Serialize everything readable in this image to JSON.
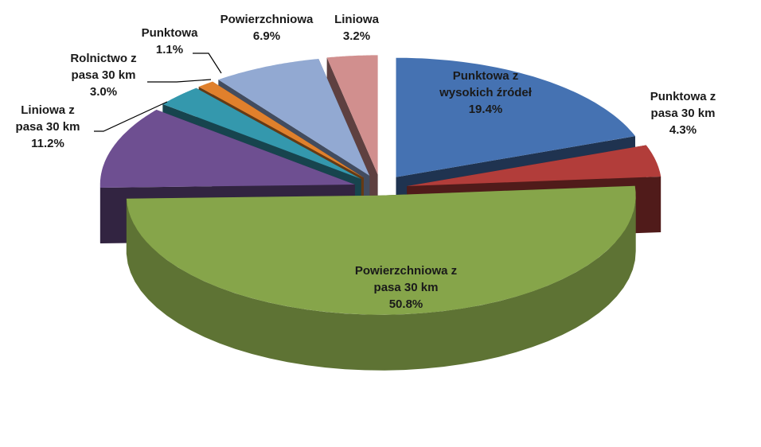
{
  "chart_data": {
    "type": "pie",
    "variant": "3d-exploded",
    "title": "",
    "slices": [
      {
        "name": "Punktowa z wysokich źródeł",
        "label_lines": [
          "Punktowa z",
          "wysokich źródeł"
        ],
        "value": 19.4,
        "value_label": "19.4%",
        "color": "#4572b2"
      },
      {
        "name": "Punktowa z pasa 30 km",
        "label_lines": [
          "Punktowa z",
          "pasa 30 km"
        ],
        "value": 4.3,
        "value_label": "4.3%",
        "color": "#b23d3a"
      },
      {
        "name": "Powierzchniowa z pasa 30 km",
        "label_lines": [
          "Powierzchniowa z",
          "pasa 30 km"
        ],
        "value": 50.8,
        "value_label": "50.8%",
        "color": "#86a54a"
      },
      {
        "name": "Liniowa z pasa 30 km",
        "label_lines": [
          "Liniowa z",
          "pasa 30 km"
        ],
        "value": 11.2,
        "value_label": "11.2%",
        "color": "#6e4f91"
      },
      {
        "name": "Rolnictwo z pasa 30 km",
        "label_lines": [
          "Rolnictwo z",
          "pasa 30 km"
        ],
        "value": 3.0,
        "value_label": "3.0%",
        "color": "#3498ad"
      },
      {
        "name": "Punktowa",
        "label_lines": [
          "Punktowa"
        ],
        "value": 1.1,
        "value_label": "1.1%",
        "color": "#e0802c"
      },
      {
        "name": "Powierzchniowa",
        "label_lines": [
          "Powierzchniowa"
        ],
        "value": 6.9,
        "value_label": "6.9%",
        "color": "#92a9d2"
      },
      {
        "name": "Liniowa",
        "label_lines": [
          "Liniowa"
        ],
        "value": 3.2,
        "value_label": "3.2%",
        "color": "#d18f8e"
      }
    ],
    "start": "12 o'clock",
    "direction": "clockwise",
    "legend": "none"
  }
}
